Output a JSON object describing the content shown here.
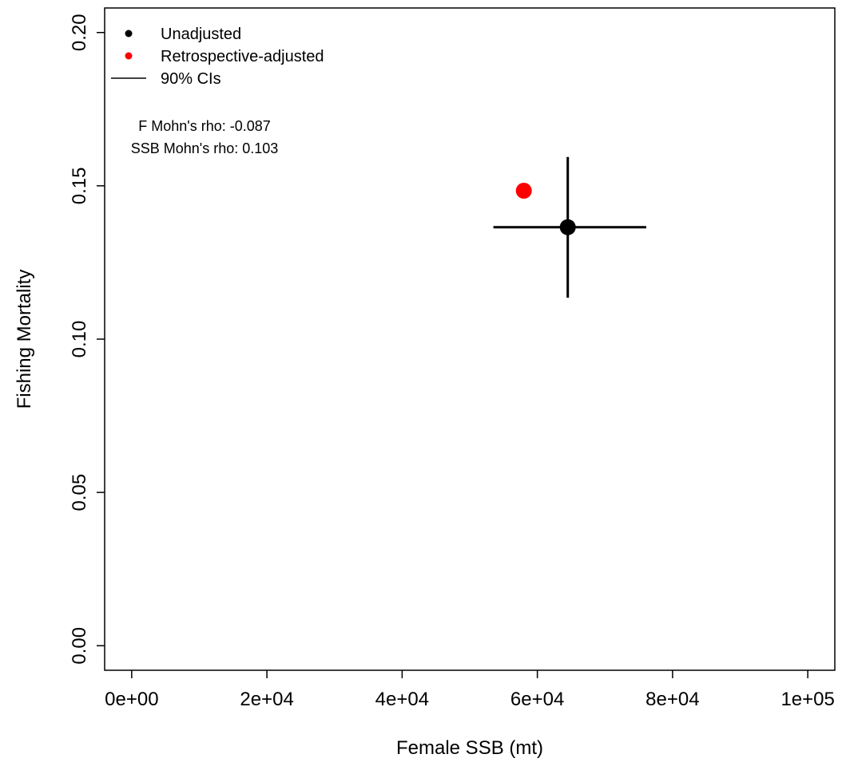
{
  "chart_data": {
    "type": "scatter",
    "xlabel": "Female SSB (mt)",
    "ylabel": "Fishing Mortality",
    "xlim": [
      -4000,
      104000
    ],
    "ylim": [
      -0.008,
      0.208
    ],
    "xticks": [
      {
        "value": 0,
        "label": "0e+00"
      },
      {
        "value": 20000,
        "label": "2e+04"
      },
      {
        "value": 40000,
        "label": "4e+04"
      },
      {
        "value": 60000,
        "label": "6e+04"
      },
      {
        "value": 80000,
        "label": "8e+04"
      },
      {
        "value": 100000,
        "label": "1e+05"
      }
    ],
    "yticks": [
      {
        "value": 0,
        "label": "0.00"
      },
      0.05,
      {
        "value": 0.1,
        "label": "0.10"
      },
      0.15,
      {
        "value": 0.2,
        "label": "0.20"
      }
    ],
    "series": [
      {
        "name": "Unadjusted",
        "color": "#000000",
        "x": [
          64500
        ],
        "values": [
          0.1365
        ],
        "x_lower": [
          53500
        ],
        "x_upper": [
          76100
        ],
        "y_lower": [
          0.1135
        ],
        "y_upper": [
          0.1594
        ]
      },
      {
        "name": "Retrospective-adjusted",
        "color": "#ff0000",
        "x": [
          58000
        ],
        "values": [
          0.1484
        ]
      }
    ],
    "ci_label": "90% CIs",
    "annotations": [
      "F Mohn's rho: -0.087",
      "SSB Mohn's rho: 0.103"
    ],
    "legend": "top-left"
  }
}
